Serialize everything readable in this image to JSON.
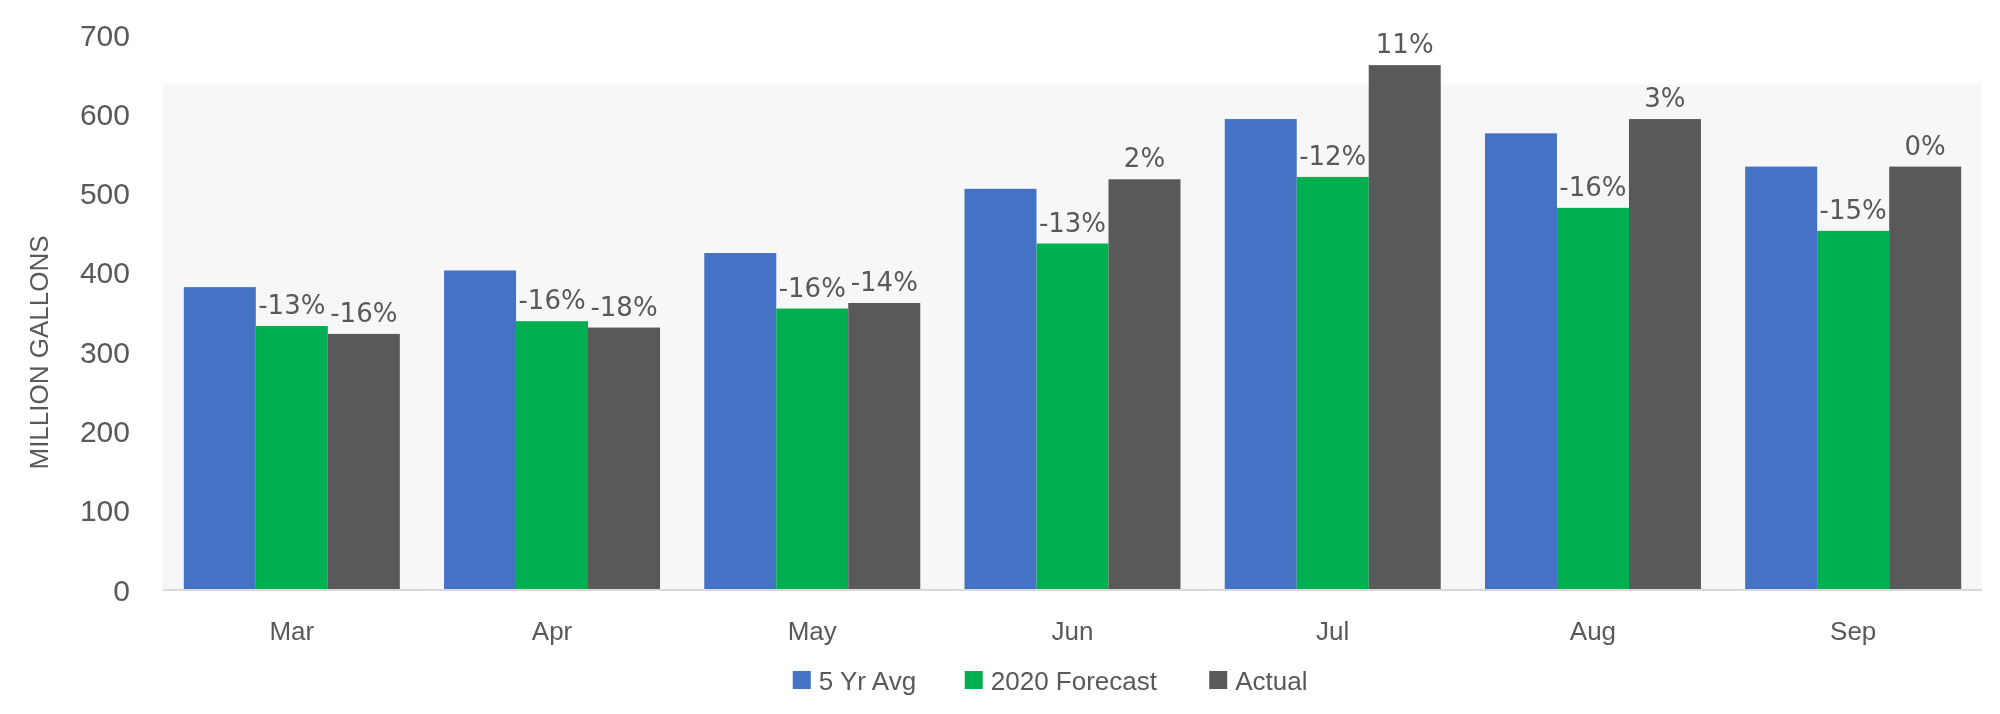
{
  "chart_data": {
    "type": "bar",
    "ylabel": "MILLION GALLONS",
    "categories": [
      "Mar",
      "Apr",
      "May",
      "Jun",
      "Jul",
      "Aug",
      "Sep"
    ],
    "ylim": [
      0,
      700
    ],
    "yticks": [
      0,
      100,
      200,
      300,
      400,
      500,
      600,
      700
    ],
    "grid": false,
    "legend": "bottom",
    "series": [
      {
        "name": "5 Yr Avg",
        "color": "#4472c4",
        "values": [
          382,
          403,
          425,
          506,
          594,
          576,
          534
        ]
      },
      {
        "name": "2020 Forecast",
        "color": "#00b050",
        "values": [
          333,
          339,
          355,
          437,
          521,
          482,
          453
        ]
      },
      {
        "name": "Actual",
        "color": "#595959",
        "values": [
          323,
          331,
          362,
          518,
          662,
          594,
          534
        ]
      }
    ],
    "annotations": [
      {
        "text": "-13%",
        "x": "Mar",
        "y": 333
      },
      {
        "text": "-16%",
        "x": "Apr",
        "y": 339
      },
      {
        "text": "-16%",
        "x": "May",
        "y": 355
      },
      {
        "text": "-13%",
        "x": "Jun",
        "y": 437
      },
      {
        "text": "-12%",
        "x": "Jul",
        "y": 521
      },
      {
        "text": "-16%",
        "x": "Aug",
        "y": 482
      },
      {
        "text": "-15%",
        "x": "Sep",
        "y": 453
      },
      "-16%",
      "-18%",
      "-14%",
      "2%",
      "11%",
      "3%",
      "0%"
    ]
  }
}
